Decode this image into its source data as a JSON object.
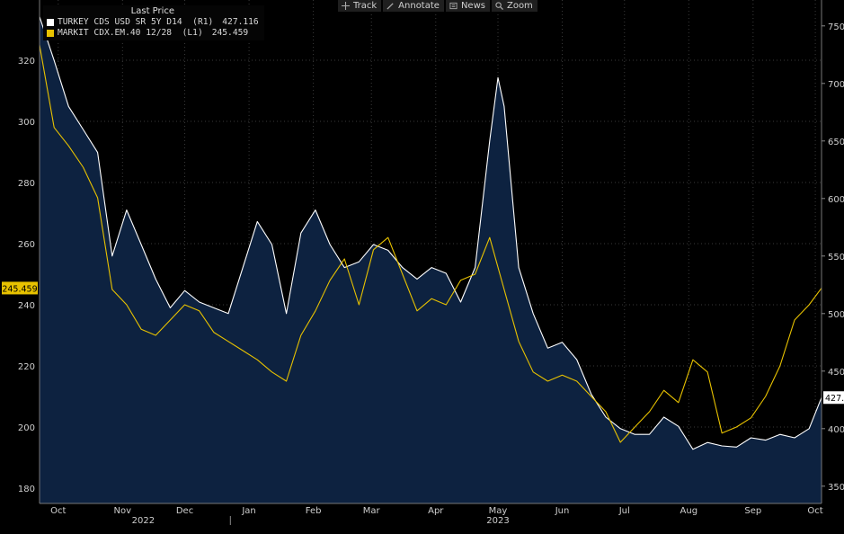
{
  "toolbar": {
    "track": "Track",
    "annotate": "Annotate",
    "news": "News",
    "zoom": "Zoom"
  },
  "legend": {
    "header": "Last Price",
    "items": [
      {
        "label": "TURKEY CDS USD SR 5Y D14  (R1)",
        "value": "427.116",
        "color": "#ffffff"
      },
      {
        "label": "MARKIT CDX.EM.40 12/28  (L1)",
        "value": "245.459",
        "color": "#e8c200"
      }
    ]
  },
  "axes": {
    "left_ticks": [
      "320",
      "300",
      "280",
      "260",
      "240",
      "220",
      "200",
      "180"
    ],
    "right_ticks": [
      "750",
      "700",
      "650",
      "600",
      "550",
      "500",
      "450",
      "400",
      "350"
    ],
    "month_labels": [
      "Oct",
      "Nov",
      "Dec",
      "Jan",
      "Feb",
      "Mar",
      "Apr",
      "May",
      "Jun",
      "Jul",
      "Aug",
      "Sep",
      "Oct"
    ],
    "year_labels": [
      "2022",
      "2023"
    ],
    "left_marker": "245.459",
    "right_marker": "427.116"
  },
  "colors": {
    "background": "#000000",
    "area_fill": "#0d2240",
    "turkey_line": "#ffffff",
    "cdx_line": "#e8c200",
    "grid": "#3a3a3a",
    "marker_left_bg": "#e8c200"
  },
  "chart_data": {
    "type": "line",
    "title": "",
    "xlabel": "",
    "ylabel": "",
    "x_range": [
      "2022-10-01",
      "2023-10-13"
    ],
    "left_axis": {
      "ylim": [
        175,
        335
      ],
      "series": "MARKIT CDX.EM.40 12/28"
    },
    "right_axis": {
      "ylim": [
        335,
        760
      ],
      "series": "TURKEY CDS USD SR 5Y D14"
    },
    "grid": true,
    "legend_position": "top-left",
    "series": [
      {
        "name": "TURKEY CDS USD SR 5Y D14 (R1)",
        "axis": "right",
        "style": "area",
        "x": [
          "2022-10-01",
          "2022-10-08",
          "2022-10-15",
          "2022-10-22",
          "2022-10-29",
          "2022-11-05",
          "2022-11-12",
          "2022-11-19",
          "2022-11-26",
          "2022-12-03",
          "2022-12-10",
          "2022-12-17",
          "2022-12-24",
          "2022-12-31",
          "2023-01-07",
          "2023-01-14",
          "2023-01-21",
          "2023-01-28",
          "2023-02-04",
          "2023-02-11",
          "2023-02-18",
          "2023-02-25",
          "2023-03-04",
          "2023-03-11",
          "2023-03-18",
          "2023-03-25",
          "2023-04-01",
          "2023-04-08",
          "2023-04-15",
          "2023-04-22",
          "2023-04-29",
          "2023-05-06",
          "2023-05-10",
          "2023-05-13",
          "2023-05-20",
          "2023-05-27",
          "2023-06-03",
          "2023-06-10",
          "2023-06-17",
          "2023-06-24",
          "2023-07-01",
          "2023-07-08",
          "2023-07-15",
          "2023-07-22",
          "2023-07-29",
          "2023-08-05",
          "2023-08-12",
          "2023-08-19",
          "2023-08-26",
          "2023-09-02",
          "2023-09-09",
          "2023-09-16",
          "2023-09-23",
          "2023-09-30",
          "2023-10-07",
          "2023-10-13"
        ],
        "values": [
          758,
          720,
          680,
          660,
          640,
          550,
          590,
          560,
          530,
          505,
          520,
          510,
          505,
          500,
          540,
          580,
          560,
          500,
          570,
          590,
          560,
          540,
          545,
          560,
          555,
          540,
          530,
          540,
          535,
          510,
          540,
          650,
          705,
          680,
          540,
          500,
          470,
          475,
          460,
          430,
          410,
          400,
          395,
          395,
          410,
          402,
          382,
          388,
          385,
          384,
          392,
          390,
          395,
          392,
          400,
          427
        ]
      },
      {
        "name": "MARKIT CDX.EM.40 12/28 (L1)",
        "axis": "left",
        "style": "line",
        "x": [
          "2022-10-01",
          "2022-10-08",
          "2022-10-15",
          "2022-10-22",
          "2022-10-29",
          "2022-11-05",
          "2022-11-12",
          "2022-11-19",
          "2022-11-26",
          "2022-12-03",
          "2022-12-10",
          "2022-12-17",
          "2022-12-24",
          "2022-12-31",
          "2023-01-07",
          "2023-01-14",
          "2023-01-21",
          "2023-01-28",
          "2023-02-04",
          "2023-02-11",
          "2023-02-18",
          "2023-02-25",
          "2023-03-04",
          "2023-03-11",
          "2023-03-18",
          "2023-03-25",
          "2023-04-01",
          "2023-04-08",
          "2023-04-15",
          "2023-04-22",
          "2023-04-29",
          "2023-05-06",
          "2023-05-13",
          "2023-05-20",
          "2023-05-27",
          "2023-06-03",
          "2023-06-10",
          "2023-06-17",
          "2023-06-24",
          "2023-07-01",
          "2023-07-08",
          "2023-07-15",
          "2023-07-22",
          "2023-07-29",
          "2023-08-05",
          "2023-08-12",
          "2023-08-19",
          "2023-08-26",
          "2023-09-02",
          "2023-09-09",
          "2023-09-16",
          "2023-09-23",
          "2023-09-30",
          "2023-10-07",
          "2023-10-13"
        ],
        "values": [
          325,
          298,
          292,
          285,
          275,
          245,
          240,
          232,
          230,
          235,
          240,
          238,
          231,
          228,
          225,
          222,
          218,
          215,
          230,
          238,
          248,
          255,
          240,
          258,
          262,
          250,
          238,
          242,
          240,
          248,
          250,
          262,
          245,
          228,
          218,
          215,
          217,
          215,
          210,
          205,
          195,
          200,
          205,
          212,
          208,
          222,
          218,
          198,
          200,
          203,
          210,
          220,
          235,
          240,
          245.459
        ]
      }
    ]
  }
}
